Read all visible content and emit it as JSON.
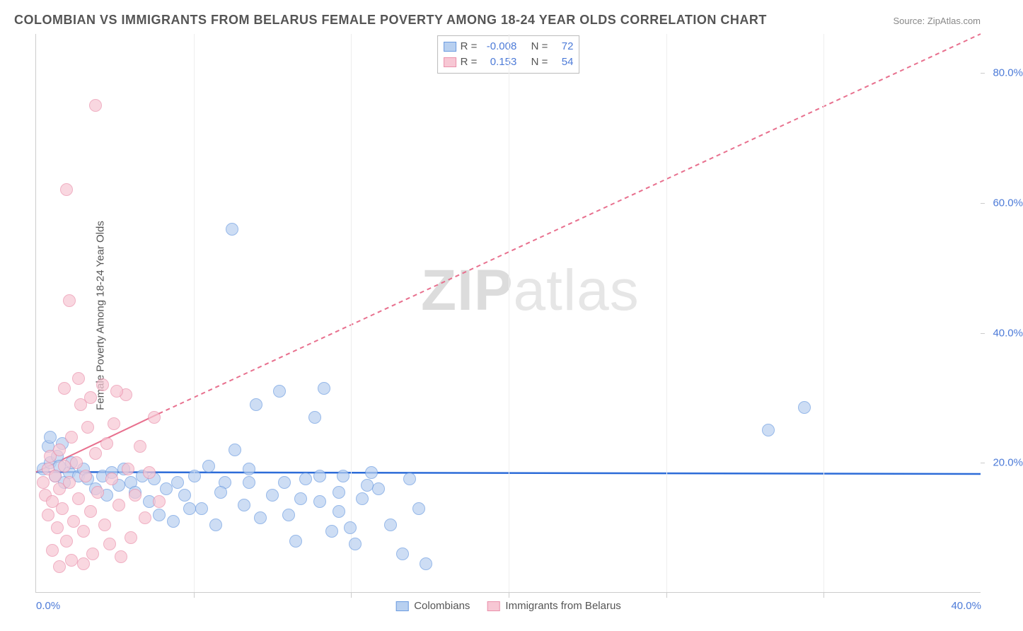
{
  "title": "COLOMBIAN VS IMMIGRANTS FROM BELARUS FEMALE POVERTY AMONG 18-24 YEAR OLDS CORRELATION CHART",
  "source": "Source: ZipAtlas.com",
  "y_axis_label": "Female Poverty Among 18-24 Year Olds",
  "watermark_bold": "ZIP",
  "watermark_rest": "atlas",
  "chart": {
    "type": "scatter",
    "xlim": [
      0,
      40
    ],
    "ylim": [
      0,
      86
    ],
    "x_ticks": [
      0,
      40
    ],
    "x_tick_labels": [
      "0.0%",
      "40.0%"
    ],
    "x_gridlines": [
      6.67,
      13.33,
      20,
      26.67,
      33.33
    ],
    "y_ticks": [
      20,
      40,
      60,
      80
    ],
    "y_tick_labels": [
      "20.0%",
      "40.0%",
      "60.0%",
      "80.0%"
    ],
    "background_color": "#ffffff",
    "grid_color": "#eeeeee",
    "axis_color": "#cccccc",
    "tick_label_color": "#4d7bd8",
    "title_color": "#555555",
    "title_fontsize": 18,
    "label_fontsize": 15,
    "series": [
      {
        "name": "Colombians",
        "fill_color": "#b8d0f0",
        "stroke_color": "#6b9be0",
        "R": "-0.008",
        "N": "72",
        "trend": {
          "solid": {
            "x1": 0,
            "y1": 18.5,
            "x2": 40,
            "y2": 18.2
          },
          "dashed": null,
          "color": "#2d6cd8",
          "width": 2.5
        },
        "points": [
          [
            0.3,
            19.0
          ],
          [
            0.5,
            22.5
          ],
          [
            0.6,
            20.0
          ],
          [
            0.6,
            24.0
          ],
          [
            0.8,
            18.0
          ],
          [
            0.9,
            21.0
          ],
          [
            1.0,
            19.5
          ],
          [
            1.1,
            23.0
          ],
          [
            1.2,
            17.0
          ],
          [
            1.4,
            18.5
          ],
          [
            1.5,
            20.0
          ],
          [
            1.8,
            18.0
          ],
          [
            2.0,
            19.0
          ],
          [
            2.2,
            17.5
          ],
          [
            2.5,
            16.0
          ],
          [
            2.8,
            18.0
          ],
          [
            3.0,
            15.0
          ],
          [
            3.2,
            18.5
          ],
          [
            3.5,
            16.5
          ],
          [
            3.7,
            19.0
          ],
          [
            4.0,
            17.0
          ],
          [
            4.2,
            15.5
          ],
          [
            4.5,
            18.0
          ],
          [
            4.8,
            14.0
          ],
          [
            5.0,
            17.5
          ],
          [
            5.2,
            12.0
          ],
          [
            5.5,
            16.0
          ],
          [
            5.8,
            11.0
          ],
          [
            6.0,
            17.0
          ],
          [
            6.3,
            15.0
          ],
          [
            6.7,
            18.0
          ],
          [
            7.0,
            13.0
          ],
          [
            7.3,
            19.5
          ],
          [
            7.6,
            10.5
          ],
          [
            8.0,
            17.0
          ],
          [
            8.4,
            22.0
          ],
          [
            8.8,
            13.5
          ],
          [
            9.0,
            19.0
          ],
          [
            9.3,
            29.0
          ],
          [
            9.5,
            11.5
          ],
          [
            10.0,
            15.0
          ],
          [
            10.3,
            31.0
          ],
          [
            10.7,
            12.0
          ],
          [
            11.0,
            8.0
          ],
          [
            11.4,
            17.5
          ],
          [
            11.8,
            27.0
          ],
          [
            12.0,
            14.0
          ],
          [
            12.2,
            31.5
          ],
          [
            12.5,
            9.5
          ],
          [
            12.8,
            12.5
          ],
          [
            13.0,
            18.0
          ],
          [
            13.3,
            10.0
          ],
          [
            13.5,
            7.5
          ],
          [
            13.8,
            14.5
          ],
          [
            14.2,
            18.5
          ],
          [
            14.5,
            16.0
          ],
          [
            15.0,
            10.5
          ],
          [
            15.5,
            6.0
          ],
          [
            15.8,
            17.5
          ],
          [
            16.2,
            13.0
          ],
          [
            16.5,
            4.5
          ],
          [
            8.3,
            56.0
          ],
          [
            9.0,
            17.0
          ],
          [
            10.5,
            17.0
          ],
          [
            11.2,
            14.5
          ],
          [
            12.0,
            18.0
          ],
          [
            12.8,
            15.5
          ],
          [
            14.0,
            16.5
          ],
          [
            32.5,
            28.5
          ],
          [
            31.0,
            25.0
          ],
          [
            6.5,
            13.0
          ],
          [
            7.8,
            15.5
          ]
        ]
      },
      {
        "name": "Immigrants from Belarus",
        "fill_color": "#f7c7d4",
        "stroke_color": "#ea90ab",
        "R": "0.153",
        "N": "54",
        "trend": {
          "solid": {
            "x1": 0,
            "y1": 18.5,
            "x2": 5.2,
            "y2": 27.5
          },
          "dashed": {
            "x1": 5.2,
            "y1": 27.5,
            "x2": 40,
            "y2": 86
          },
          "color": "#e8708e",
          "width": 2
        },
        "points": [
          [
            0.3,
            17.0
          ],
          [
            0.4,
            15.0
          ],
          [
            0.5,
            19.0
          ],
          [
            0.5,
            12.0
          ],
          [
            0.6,
            21.0
          ],
          [
            0.7,
            14.0
          ],
          [
            0.8,
            18.0
          ],
          [
            0.9,
            10.0
          ],
          [
            1.0,
            16.0
          ],
          [
            1.0,
            22.0
          ],
          [
            1.1,
            13.0
          ],
          [
            1.2,
            19.5
          ],
          [
            1.3,
            8.0
          ],
          [
            1.4,
            17.0
          ],
          [
            1.5,
            24.0
          ],
          [
            1.6,
            11.0
          ],
          [
            1.7,
            20.0
          ],
          [
            1.8,
            14.5
          ],
          [
            1.9,
            29.0
          ],
          [
            2.0,
            9.5
          ],
          [
            2.1,
            18.0
          ],
          [
            2.2,
            25.5
          ],
          [
            2.3,
            12.5
          ],
          [
            2.4,
            6.0
          ],
          [
            2.5,
            21.5
          ],
          [
            2.6,
            15.5
          ],
          [
            2.8,
            32.0
          ],
          [
            2.9,
            10.5
          ],
          [
            3.0,
            23.0
          ],
          [
            3.1,
            7.5
          ],
          [
            3.2,
            17.5
          ],
          [
            3.3,
            26.0
          ],
          [
            3.5,
            13.5
          ],
          [
            3.6,
            5.5
          ],
          [
            3.8,
            30.5
          ],
          [
            3.9,
            19.0
          ],
          [
            4.0,
            8.5
          ],
          [
            4.2,
            15.0
          ],
          [
            4.4,
            22.5
          ],
          [
            4.6,
            11.5
          ],
          [
            4.8,
            18.5
          ],
          [
            5.0,
            27.0
          ],
          [
            5.2,
            14.0
          ],
          [
            1.4,
            45.0
          ],
          [
            1.3,
            62.0
          ],
          [
            2.5,
            75.0
          ],
          [
            1.0,
            4.0
          ],
          [
            1.5,
            5.0
          ],
          [
            2.0,
            4.5
          ],
          [
            0.7,
            6.5
          ],
          [
            1.2,
            31.5
          ],
          [
            1.8,
            33.0
          ],
          [
            2.3,
            30.0
          ],
          [
            3.4,
            31.0
          ]
        ]
      }
    ],
    "bottom_legend": [
      {
        "label": "Colombians",
        "fill": "#b8d0f0",
        "stroke": "#6b9be0"
      },
      {
        "label": "Immigrants from Belarus",
        "fill": "#f7c7d4",
        "stroke": "#ea90ab"
      }
    ],
    "stats_labels": {
      "R": "R =",
      "N": "N ="
    }
  }
}
